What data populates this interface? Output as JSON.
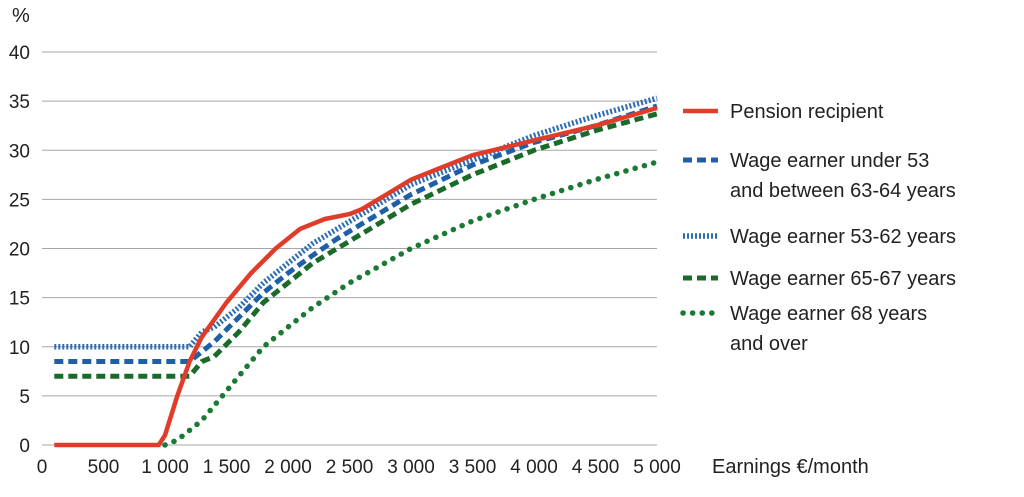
{
  "chart_data": {
    "type": "line",
    "ylabel": "%",
    "xlabel": "Earnings €/month",
    "xlim": [
      0,
      5000
    ],
    "ylim": [
      0,
      40
    ],
    "grid": true,
    "legend_position": "right",
    "x_ticks": [
      "0",
      "500",
      "1 000",
      "1 500",
      "2 000",
      "2 500",
      "3 000",
      "3 500",
      "4 000",
      "4 500",
      "5 000"
    ],
    "y_ticks": [
      "0",
      "5",
      "10",
      "15",
      "20",
      "25",
      "30",
      "35",
      "40"
    ],
    "series": [
      {
        "name": "Pension recipient",
        "color": "#e03c2a",
        "style": "solid",
        "x": [
          100,
          950,
          1000,
          1100,
          1200,
          1300,
          1500,
          1700,
          1900,
          2100,
          2300,
          2500,
          2600,
          2800,
          3000,
          3200,
          3500,
          4000,
          4500,
          5000
        ],
        "y": [
          0,
          0,
          1,
          5,
          8.5,
          11,
          14.5,
          17.5,
          20,
          22,
          23,
          23.5,
          24,
          25.5,
          27,
          28,
          29.5,
          31,
          32.5,
          34.3
        ]
      },
      {
        "name": "Wage earner under 53 and between 63-64 years",
        "color": "#1f5fa8",
        "style": "dashed",
        "x": [
          100,
          1200,
          1300,
          1400,
          1600,
          1800,
          2000,
          2200,
          2400,
          2600,
          2800,
          3000,
          3500,
          4000,
          4500,
          5000
        ],
        "y": [
          8.5,
          8.5,
          9.5,
          10.5,
          13,
          15.5,
          17.5,
          19.3,
          21,
          22.5,
          24,
          25.5,
          28.5,
          30.8,
          32.5,
          34.5
        ]
      },
      {
        "name": "Wage earner 53-62 years",
        "color": "#2d6db3",
        "style": "dotted",
        "x": [
          100,
          1200,
          1300,
          1400,
          1600,
          1800,
          2000,
          2200,
          2400,
          2600,
          2800,
          3000,
          3500,
          4000,
          4500,
          5000
        ],
        "y": [
          10,
          10,
          11.5,
          12,
          14,
          16.5,
          18.5,
          20.5,
          22,
          23.5,
          25,
          26.5,
          29,
          31.5,
          33.5,
          35.3
        ]
      },
      {
        "name": "Wage earner 65-67 years",
        "color": "#1a6b2a",
        "style": "dashed",
        "x": [
          100,
          1200,
          1300,
          1400,
          1600,
          1800,
          2000,
          2200,
          2400,
          2600,
          2800,
          3000,
          3500,
          4000,
          4500,
          5000
        ],
        "y": [
          7,
          7,
          8.5,
          9,
          11.5,
          14.5,
          16.5,
          18.5,
          20,
          21.5,
          23,
          24.5,
          27.5,
          30,
          32,
          33.7
        ]
      },
      {
        "name": "Wage earner 68 years and over",
        "color": "#1a7a35",
        "style": "dotted-round",
        "x": [
          1000,
          1100,
          1200,
          1300,
          1400,
          1500,
          1600,
          1700,
          1800,
          2000,
          2200,
          2500,
          3000,
          3500,
          4000,
          4500,
          5000
        ],
        "y": [
          0,
          0.5,
          1.5,
          2.5,
          4,
          5.5,
          7,
          8.5,
          10,
          12,
          14,
          16.5,
          20,
          22.8,
          25,
          27,
          28.8
        ]
      }
    ],
    "legend": [
      {
        "lines": [
          "Pension recipient"
        ]
      },
      {
        "lines": [
          "Wage earner under 53",
          "and between 63-64 years"
        ]
      },
      {
        "lines": [
          "Wage earner 53-62 years"
        ]
      },
      {
        "lines": [
          "Wage earner 65-67 years"
        ]
      },
      {
        "lines": [
          "Wage earner 68 years",
          "and over"
        ]
      }
    ]
  }
}
